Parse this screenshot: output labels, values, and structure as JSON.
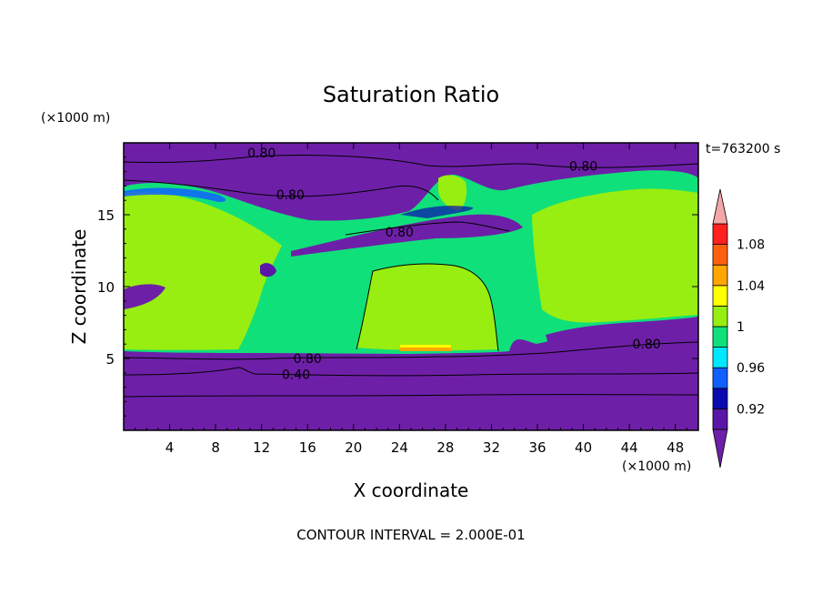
{
  "chart_data": {
    "type": "heatmap",
    "title": "Saturation Ratio",
    "xlabel": "X coordinate",
    "ylabel": "Z coordinate",
    "x_unit": "(×1000 m)",
    "y_unit": "(×1000 m)",
    "xlim": [
      0,
      50
    ],
    "ylim": [
      0,
      20
    ],
    "x_ticks": [
      4,
      8,
      12,
      16,
      20,
      24,
      28,
      32,
      36,
      40,
      44,
      48
    ],
    "y_ticks": [
      5,
      10,
      15
    ],
    "time_label": "t=763200 s",
    "footer": "CONTOUR INTERVAL = 2.000E-01",
    "colorbar": {
      "levels": [
        0.9,
        0.92,
        0.94,
        0.96,
        0.98,
        1.0,
        1.02,
        1.04,
        1.06,
        1.08,
        1.1
      ],
      "labels": [
        "0.92",
        "0.96",
        "1",
        "1.04",
        "1.08"
      ],
      "label_values": [
        0.92,
        0.96,
        1.0,
        1.04,
        1.08
      ],
      "colors": [
        "#5a16a6",
        "#0a0ab0",
        "#1060ff",
        "#00e8ff",
        "#10e07a",
        "#98ee10",
        "#ffff00",
        "#ffa500",
        "#ff6010",
        "#ff2020"
      ],
      "under_color": "#6e1fa8",
      "over_color": "#f4a7a7"
    },
    "contours": [
      {
        "label": "0.80",
        "x": 16,
        "z": 5.0
      },
      {
        "label": "0.40",
        "x": 15,
        "z": 3.9
      },
      {
        "label": "0.80",
        "x": 12,
        "z": 19.3
      },
      {
        "label": "0.80",
        "x": 14.5,
        "z": 16.4
      },
      {
        "label": "0.80",
        "x": 24,
        "z": 13.8
      },
      {
        "label": "0.80",
        "x": 40,
        "z": 18.4
      },
      {
        "label": "0.80",
        "x": 45.5,
        "z": 6.0
      }
    ]
  }
}
